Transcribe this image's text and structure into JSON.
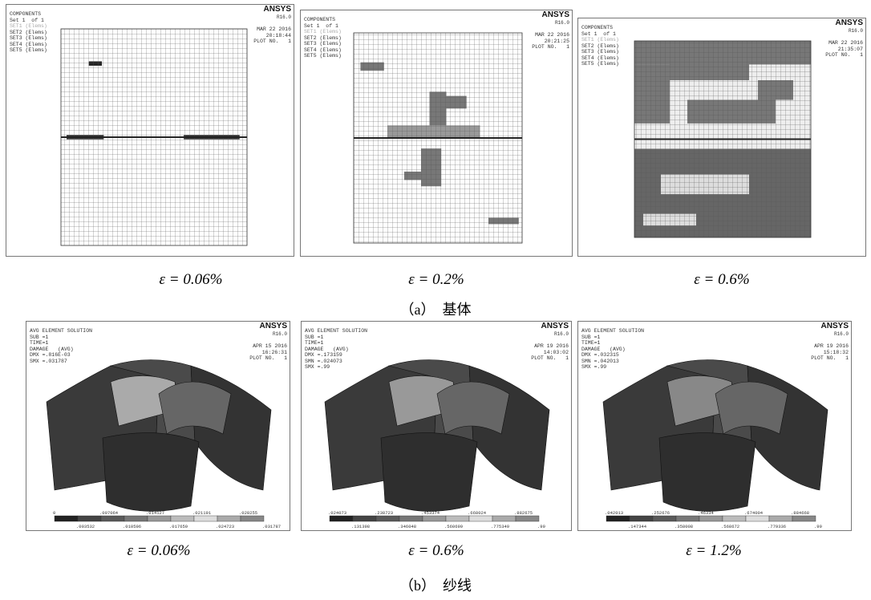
{
  "matrix": {
    "panels": [
      {
        "left": [
          "COMPONENTS",
          "Set 1  of 1",
          "SET1 (Elems)",
          "SET2 (Elems)",
          "SET3 (Elems)",
          "SET4 (Elems)",
          "SET5 (Elems)"
        ],
        "right": [
          "ANSYS",
          "R16.0",
          "MAR 22 2016",
          "20:18:44",
          "PLOT NO.   1"
        ],
        "caption": "ε = 0.06%"
      },
      {
        "left": [
          "COMPONENTS",
          "Set 1  of 1",
          "SET1 (Elems)",
          "SET2 (Elems)",
          "SET3 (Elems)",
          "SET4 (Elems)",
          "SET5 (Elems)"
        ],
        "right": [
          "ANSYS",
          "R16.0",
          "MAR 22 2016",
          "20:21:25",
          "PLOT NO.   1"
        ],
        "caption": "ε = 0.2%"
      },
      {
        "left": [
          "COMPONENTS",
          "Set 1  of 1",
          "SET1 (Elems)",
          "SET2 (Elems)",
          "SET3 (Elems)",
          "SET4 (Elems)",
          "SET5 (Elems)"
        ],
        "right": [
          "ANSYS",
          "R16.0",
          "MAR 22 2016",
          "21:35:07",
          "PLOT NO.   1"
        ],
        "caption": "ε = 0.6%"
      }
    ],
    "label": "（a）　基体"
  },
  "yarn": {
    "panels": [
      {
        "left": [
          "AVG ELEMENT SOLUTION",
          "SUB =1",
          "TIME=1",
          "DAMAGE   (AVG)",
          "DMX =.816E-03",
          "SMX =.031787"
        ],
        "right": [
          "ANSYS",
          "R16.0",
          "APR 15 2016",
          "16:26:31",
          "PLOT NO.   1"
        ],
        "scale": [
          "0",
          ".003532",
          ".007064",
          ".010596",
          ".014127",
          ".017659",
          ".021191",
          ".024723",
          ".028255",
          ".031787"
        ],
        "caption": "ε = 0.06%"
      },
      {
        "left": [
          "AVG ELEMENT SOLUTION",
          "SUB =1",
          "TIME=1",
          "DAMAGE   (AVG)",
          "DMX =.173159",
          "SMN =.024073",
          "SMX =.99"
        ],
        "right": [
          "ANSYS",
          "R16.0",
          "APR 19 2016",
          "14:03:02",
          "PLOT NO.   1"
        ],
        "scale": [
          ".024073",
          ".131398",
          ".238723",
          ".346048",
          ".453374",
          ".560699",
          ".668024",
          ".775349",
          ".882675",
          ".99"
        ],
        "caption": "ε = 0.6%"
      },
      {
        "left": [
          "AVG ELEMENT SOLUTION",
          "SUB =1",
          "TIME=1",
          "DAMAGE   (AVG)",
          "DMX =.032315",
          "SMN =.042013",
          "SMX =.99"
        ],
        "right": [
          "ANSYS",
          "R16.0",
          "APR 19 2016",
          "15:18:32",
          "PLOT NO.   1"
        ],
        "scale": [
          ".042013",
          ".147344",
          ".252676",
          ".358008",
          ".46334",
          ".568672",
          ".674004",
          ".779336",
          ".884668",
          ".99"
        ],
        "caption": "ε = 1.2%"
      }
    ],
    "label": "（b）　纱线"
  }
}
